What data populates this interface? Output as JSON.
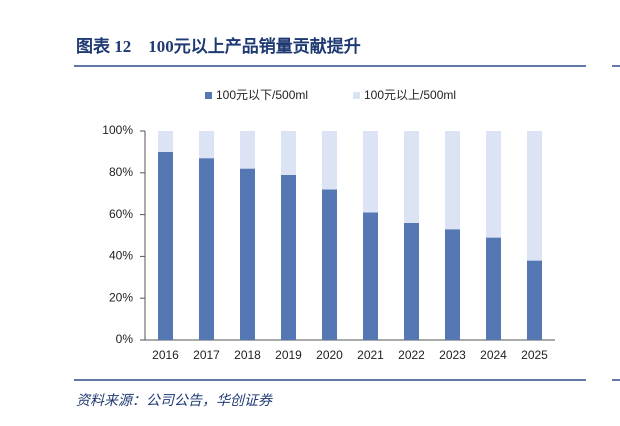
{
  "chart_data": {
    "type": "stacked_bar",
    "title": "图表 12　100元以上产品销量贡献提升",
    "source": "资料来源：公司公告，华创证券",
    "categories": [
      "2016",
      "2017",
      "2018",
      "2019",
      "2020",
      "2021",
      "2022",
      "2023",
      "2024",
      "2025"
    ],
    "series": [
      {
        "name": "100元以下/500ml",
        "color": "#5578b5",
        "values": [
          90,
          87,
          82,
          79,
          72,
          61,
          56,
          53,
          49,
          38
        ]
      },
      {
        "name": "100元以上/500ml",
        "color": "#dce3f5",
        "values": [
          10,
          13,
          18,
          21,
          28,
          39,
          44,
          47,
          51,
          62
        ]
      }
    ],
    "ylim": [
      0,
      100
    ],
    "yticks": [
      {
        "value": 0,
        "label": "0%"
      },
      {
        "value": 20,
        "label": "20%"
      },
      {
        "value": 40,
        "label": "40%"
      },
      {
        "value": 60,
        "label": "60%"
      },
      {
        "value": 80,
        "label": "80%"
      },
      {
        "value": 100,
        "label": "100%"
      }
    ],
    "legend": "top"
  }
}
